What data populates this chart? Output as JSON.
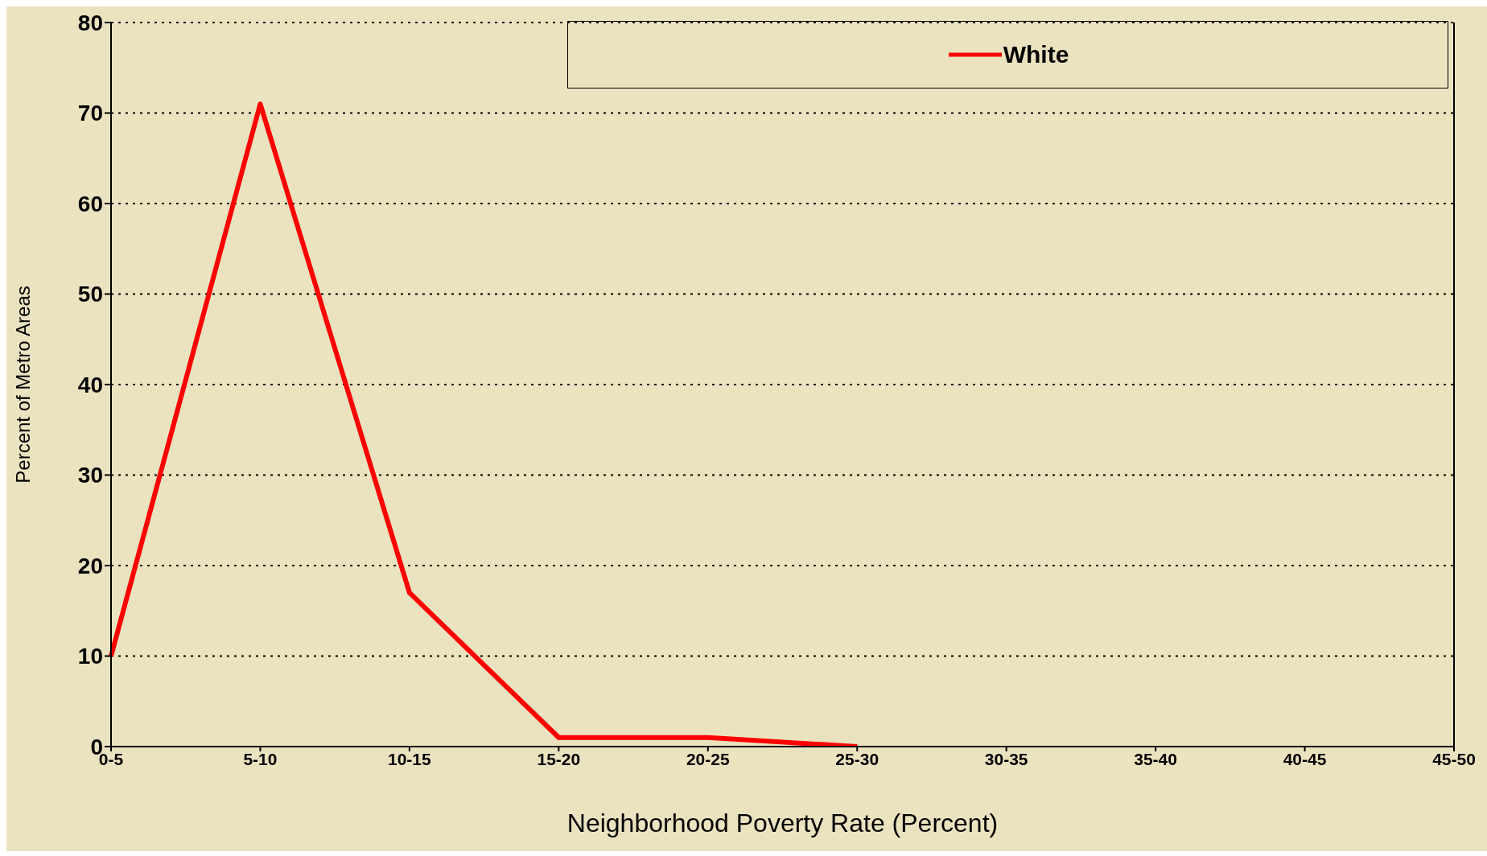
{
  "chart_data": {
    "type": "line",
    "xlabel": "Neighborhood Poverty Rate (Percent)",
    "ylabel": "Percent of Metro Areas",
    "categories": [
      "0-5",
      "5-10",
      "10-15",
      "15-20",
      "20-25",
      "25-30",
      "30-35",
      "35-40",
      "40-45",
      "45-50"
    ],
    "series": [
      {
        "name": "White",
        "color": "#ff0000",
        "values": [
          10,
          71,
          17,
          1,
          1,
          0,
          null,
          null,
          null,
          null
        ]
      }
    ],
    "ylim": [
      0,
      80
    ],
    "yticks": [
      0,
      10,
      20,
      30,
      40,
      50,
      60,
      70,
      80
    ],
    "grid": "y",
    "legend": "top right",
    "line_style": "solid"
  }
}
